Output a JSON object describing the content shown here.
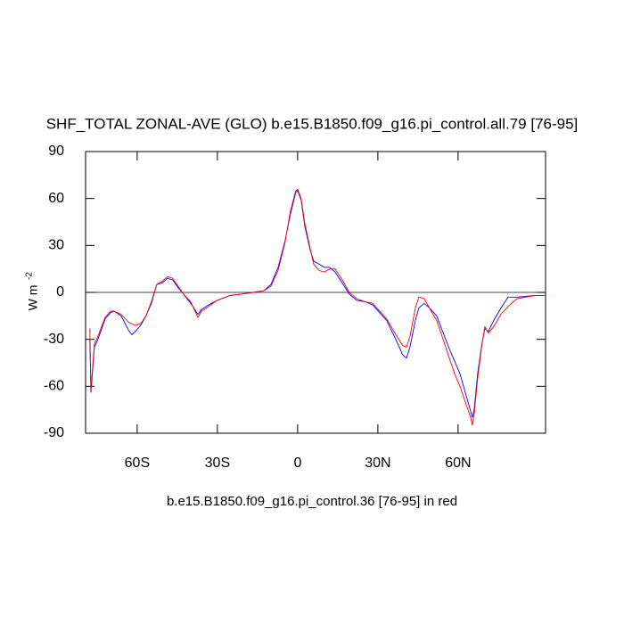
{
  "chart_data": {
    "type": "line",
    "title": "SHF_TOTAL ZONAL-AVE (GLO) b.e15.B1850.f09_g16.pi_control.all.79 [76-95]",
    "xlabel": "b.e15.B1850.f09_g16.pi_control.36 [76-95] in red",
    "ylabel": "W m",
    "ylabel_exponent": "-2",
    "x": [
      -77.7,
      -77.3,
      -76,
      -74.7,
      -72,
      -70,
      -68.7,
      -66,
      -63.3,
      -62,
      -60.7,
      -58.7,
      -56.7,
      -54.7,
      -52.7,
      -50.7,
      -48.7,
      -46.7,
      -44.7,
      -42.7,
      -40,
      -37.3,
      -36,
      -33.3,
      -30,
      -25.3,
      -20.7,
      -16.7,
      -12.7,
      -10,
      -7.3,
      -4.7,
      -2.7,
      -0.7,
      0,
      1.3,
      2.7,
      4.7,
      6,
      8,
      10,
      12,
      14,
      16.7,
      19.3,
      22,
      25.3,
      28,
      30.7,
      33.3,
      36.7,
      39.3,
      40.7,
      42,
      44,
      45.3,
      47.3,
      49.3,
      52,
      54,
      56.7,
      58.7,
      60.7,
      62.7,
      64.7,
      65.3,
      66,
      67.3,
      68.7,
      70,
      71.3,
      73.3,
      76,
      78.7,
      82,
      88.7,
      92.7
    ],
    "series": [
      {
        "color": "#0000ff",
        "values": [
          -30,
          -64,
          -35,
          -30,
          -17,
          -13,
          -12,
          -15,
          -24,
          -27,
          -25,
          -21,
          -15,
          -7,
          5,
          6,
          9,
          8,
          3,
          -1,
          -7,
          -14,
          -11,
          -8,
          -5,
          -2,
          -1,
          0,
          1,
          5,
          16,
          33,
          50,
          64,
          65,
          59,
          42,
          27,
          20,
          18,
          16,
          16,
          13,
          6,
          -1,
          -5,
          -6,
          -8,
          -13,
          -18,
          -30,
          -40,
          -42,
          -35,
          -18,
          -10,
          -7,
          -10,
          -15,
          -24,
          -36,
          -44,
          -52,
          -64,
          -76,
          -80,
          -75,
          -52,
          -35,
          -23,
          -25,
          -18,
          -10,
          -3,
          -3,
          -2,
          -2
        ]
      },
      {
        "color": "#ff0000",
        "values": [
          -23,
          -62,
          -33,
          -28,
          -16,
          -12,
          -12,
          -14,
          -19,
          -20,
          -21,
          -20,
          -15,
          -6,
          5,
          7,
          10,
          9,
          4,
          -1,
          -6,
          -16,
          -12,
          -9,
          -5,
          -2,
          -1,
          0,
          1,
          4,
          14,
          32,
          52,
          65,
          66,
          60,
          44,
          28,
          18,
          14,
          13,
          15,
          15,
          8,
          0,
          -4,
          -6,
          -7,
          -12,
          -17,
          -27,
          -34,
          -35,
          -28,
          -10,
          -3,
          -4,
          -10,
          -18,
          -28,
          -42,
          -52,
          -60,
          -70,
          -80,
          -85,
          -78,
          -55,
          -36,
          -22,
          -26,
          -22,
          -14,
          -9,
          -4,
          -2,
          -2
        ]
      }
    ],
    "xlim": [
      -79.3,
      92.7
    ],
    "ylim": [
      -90,
      90
    ],
    "xticks": [
      {
        "value": -60,
        "label": "60S"
      },
      {
        "value": -30,
        "label": "30S"
      },
      0,
      {
        "value": 30,
        "label": "30N"
      },
      {
        "value": 60,
        "label": "60N"
      }
    ],
    "yticks": [
      -90,
      -60,
      -30,
      0,
      30,
      60,
      90
    ],
    "reference_line": 0
  }
}
